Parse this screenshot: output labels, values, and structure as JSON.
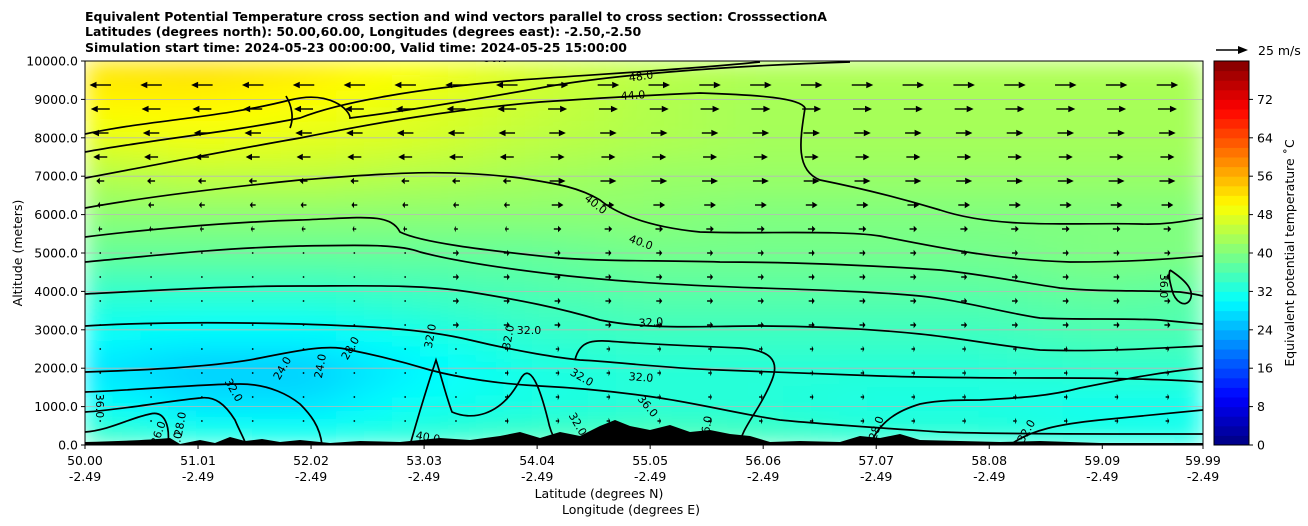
{
  "chart_data": {
    "type": "heatmap",
    "title_lines": [
      "Equivalent Potential Temperature cross section and wind vectors parallel to cross section: CrosssectionA",
      "Latitudes (degrees north): 50.00,60.00, Longitudes (degrees east): -2.50,-2.50",
      "Simulation start time: 2024-05-23 00:00:00, Valid time: 2024-05-25 15:00:00"
    ],
    "ylabel": "Altitude (meters)",
    "xlabel_line1": "Latitude (degrees N)",
    "xlabel_line2": "Longitude (degrees E)",
    "ylim": [
      0,
      10000
    ],
    "xlim": [
      50.0,
      59.99
    ],
    "y_ticks": [
      "0.0",
      "1000.0",
      "2000.0",
      "3000.0",
      "4000.0",
      "5000.0",
      "6000.0",
      "7000.0",
      "8000.0",
      "9000.0",
      "10000.0"
    ],
    "x_ticks": [
      {
        "lat": "50.00",
        "lon": "-2.49"
      },
      {
        "lat": "51.01",
        "lon": "-2.49"
      },
      {
        "lat": "52.02",
        "lon": "-2.49"
      },
      {
        "lat": "53.03",
        "lon": "-2.49"
      },
      {
        "lat": "54.04",
        "lon": "-2.49"
      },
      {
        "lat": "55.05",
        "lon": "-2.49"
      },
      {
        "lat": "56.06",
        "lon": "-2.49"
      },
      {
        "lat": "57.07",
        "lon": "-2.49"
      },
      {
        "lat": "58.08",
        "lon": "-2.49"
      },
      {
        "lat": "59.09",
        "lon": "-2.49"
      },
      {
        "lat": "59.99",
        "lon": "-2.49"
      }
    ],
    "grid": "horizontal",
    "colorbar": {
      "label": "Equivalent potential temperature $^\\circ$C",
      "label_display": "Equivalent potential temperature ˚C",
      "ticks": [
        "0",
        "8",
        "16",
        "24",
        "32",
        "40",
        "48",
        "56",
        "64",
        "72"
      ],
      "range": [
        0,
        80
      ],
      "colormap": "jet"
    },
    "quiver_key": {
      "label": "25 m/s",
      "speed": 25
    },
    "contour_levels": [
      24,
      28,
      32,
      36,
      40,
      44,
      48,
      50
    ],
    "contour_labels": [
      "50.0",
      "48.0",
      "44.0",
      "40.0",
      "40.0",
      "36.0",
      "36.0",
      "32.0",
      "32.0",
      "32.0",
      "32.0",
      "32.0",
      "32.0",
      "32.0",
      "28.0",
      "28.0",
      "24.0",
      "24.0",
      "28.0",
      "32.0",
      "36.0",
      "36.0",
      "40.0",
      "36.0",
      "32.0",
      "32.0"
    ],
    "sample_field": {
      "altitudes_m": [
        0,
        1000,
        2000,
        3000,
        4000,
        5000,
        6000,
        7000,
        8000,
        9000,
        10000
      ],
      "latitudes": [
        50.0,
        51.0,
        52.0,
        53.0,
        54.0,
        55.0,
        56.0,
        57.0,
        58.0,
        59.0,
        60.0
      ],
      "theta_e_C": [
        [
          36,
          34,
          33,
          34,
          36,
          37,
          36,
          34,
          34,
          33,
          32
        ],
        [
          31,
          28,
          28,
          31,
          32,
          33,
          33,
          32,
          32,
          31,
          31
        ],
        [
          28,
          26,
          26,
          29,
          32,
          33,
          33,
          33,
          33,
          34,
          34
        ],
        [
          31,
          30,
          30,
          32,
          34,
          35,
          35,
          35,
          35,
          36,
          36
        ],
        [
          34,
          34,
          34,
          35,
          36,
          37,
          37,
          37,
          37,
          38,
          37
        ],
        [
          38,
          38,
          38,
          38,
          38,
          39,
          39,
          39,
          39,
          40,
          40
        ],
        [
          41,
          41,
          41,
          41,
          41,
          41,
          40,
          40,
          40,
          40,
          40
        ],
        [
          44,
          45,
          45,
          44,
          43,
          42,
          42,
          42,
          42,
          42,
          42
        ],
        [
          48,
          49,
          48,
          47,
          45,
          44,
          43,
          43,
          43,
          43,
          43
        ],
        [
          51,
          51,
          50,
          48,
          46,
          44,
          43,
          43,
          43,
          43,
          43
        ],
        [
          52,
          53,
          52,
          50,
          47,
          45,
          44,
          44,
          44,
          44,
          44
        ]
      ]
    }
  }
}
